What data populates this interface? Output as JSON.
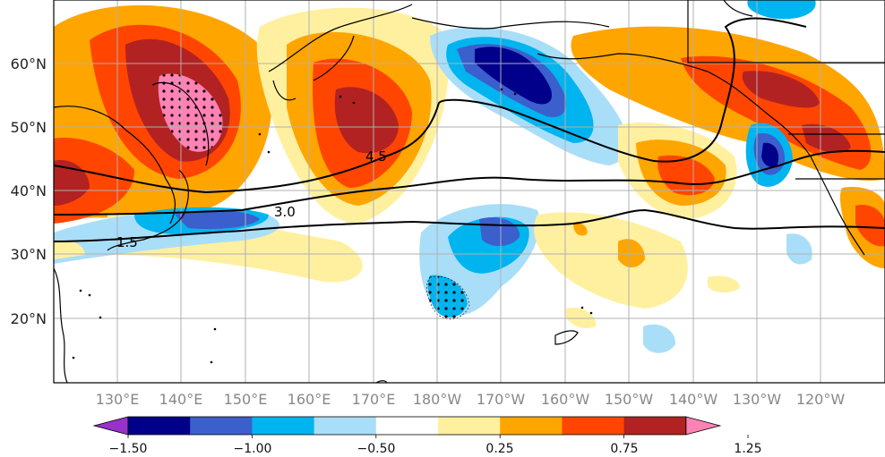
{
  "map": {
    "lat_labels": [
      "60°N",
      "50°N",
      "40°N",
      "30°N",
      "20°N"
    ],
    "lon_labels": [
      "130°E",
      "140°E",
      "150°E",
      "160°E",
      "170°E",
      "180°W",
      "170°W",
      "160°W",
      "150°W",
      "140°W",
      "130°W",
      "120°W"
    ],
    "contour_labels": [
      "4.5",
      "3.0",
      "1.5"
    ],
    "extent": {
      "lon_min": 120,
      "lon_max": 245,
      "lat_min": 10,
      "lat_max": 70
    },
    "grid": true,
    "stippling": "dots over significant regions"
  },
  "colorbar": {
    "tick_labels": [
      "−1.50",
      "−1.00",
      "−0.50",
      "0.25",
      "0.75",
      "1.25"
    ],
    "levels": [
      -1.5,
      -1.25,
      -1.0,
      -0.75,
      -0.5,
      -0.25,
      0.25,
      0.5,
      0.75,
      1.0,
      1.25,
      1.5
    ],
    "colors": [
      "#9932cc",
      "#00008b",
      "#3b5fcd",
      "#00b4f0",
      "#a9def9",
      "#ffffff",
      "#fff0a0",
      "#ffa500",
      "#ff4500",
      "#b22222",
      "#ff82b4"
    ],
    "extend": "both"
  },
  "colors": {
    "land_outline": "#000000",
    "grid": "#b0b0b0"
  }
}
